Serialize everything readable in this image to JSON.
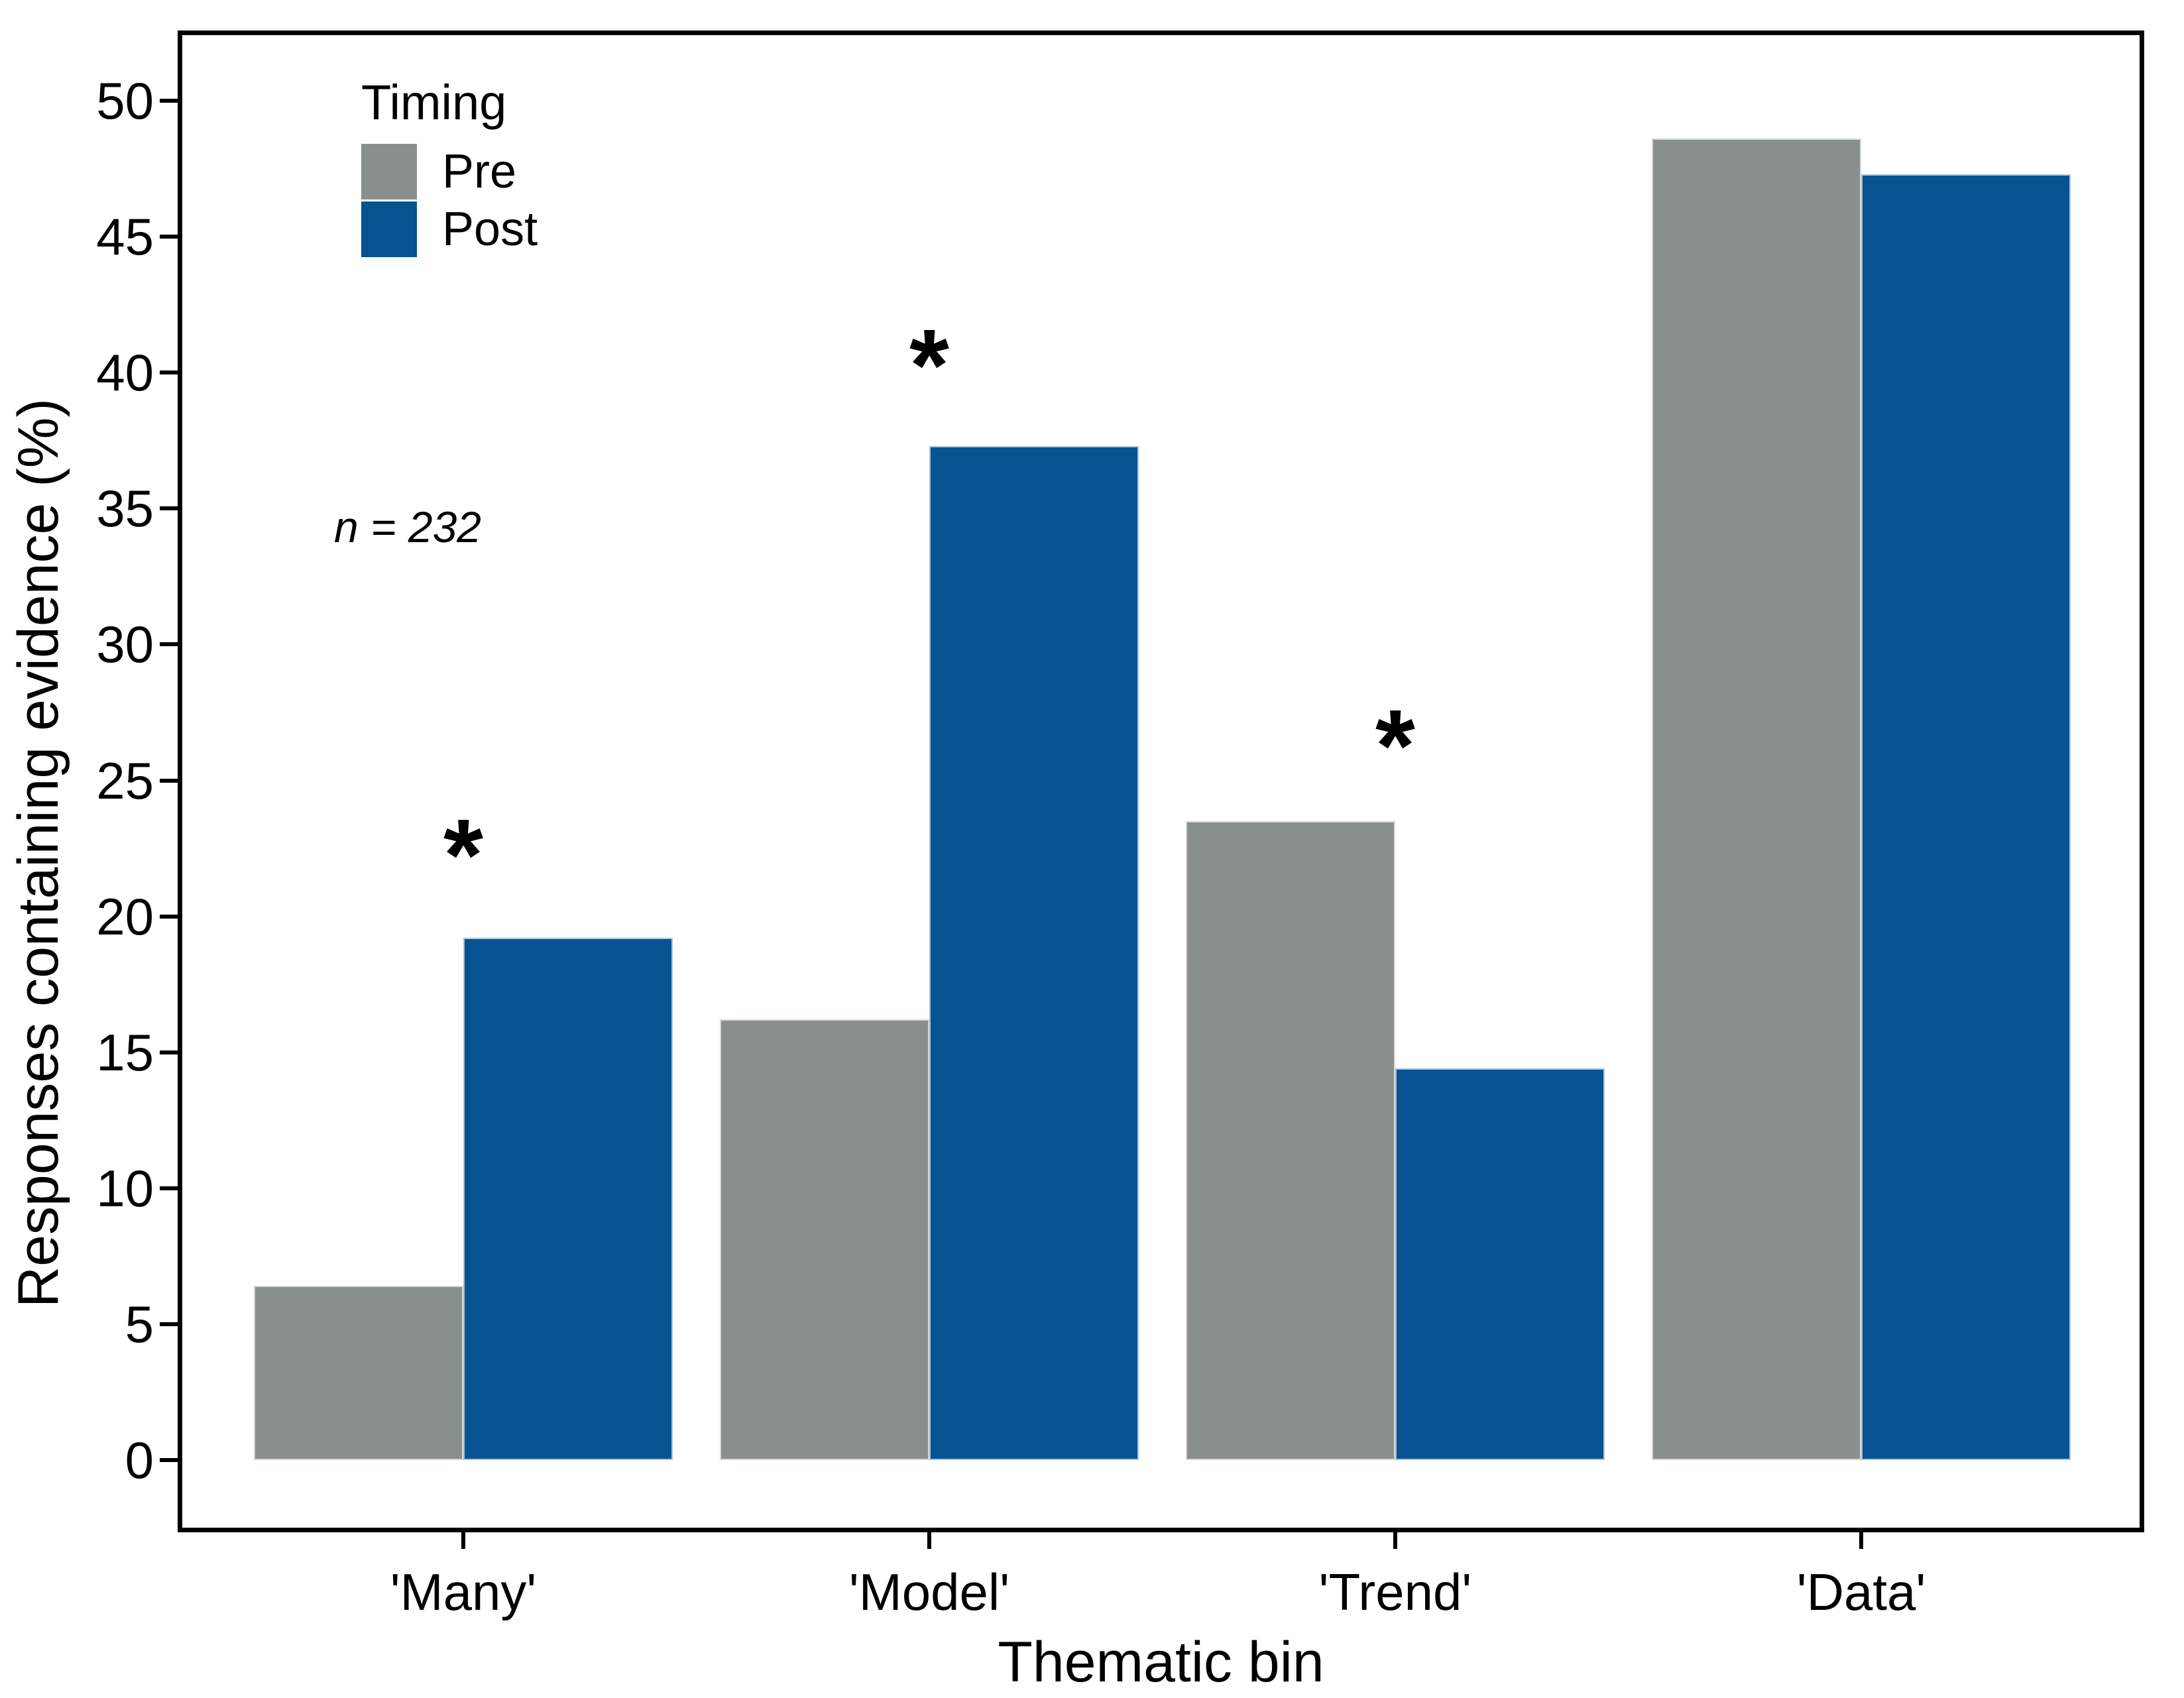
{
  "chart_data": {
    "type": "bar",
    "title": "",
    "categories": [
      "'Many'",
      "'Model'",
      "'Trend'",
      "'Data'"
    ],
    "series": [
      {
        "name": "Pre",
        "color": "#898F8D",
        "values": [
          6.4,
          16.2,
          23.5,
          48.6
        ]
      },
      {
        "name": "Post",
        "color": "#075392",
        "values": [
          19.2,
          37.3,
          14.4,
          47.3
        ]
      }
    ],
    "xlabel": "Thematic bin",
    "ylabel": "Responses containing evidence (%)",
    "ylim": [
      0,
      50
    ],
    "yticks": [
      0,
      5,
      10,
      15,
      20,
      25,
      30,
      35,
      40,
      45,
      50
    ],
    "grid": "off",
    "legend": {
      "title": "Timing",
      "position": "inside-top-left"
    },
    "annotation": {
      "text": "n = 232"
    },
    "significance_markers": [
      {
        "category": "'Many'",
        "marker": "*",
        "y_value": 23.0
      },
      {
        "category": "'Model'",
        "marker": "*",
        "y_value": 41.0
      },
      {
        "category": "'Trend'",
        "marker": "*",
        "y_value": 27.0
      }
    ],
    "axis_color": "#000000",
    "text_color": "#000000"
  }
}
